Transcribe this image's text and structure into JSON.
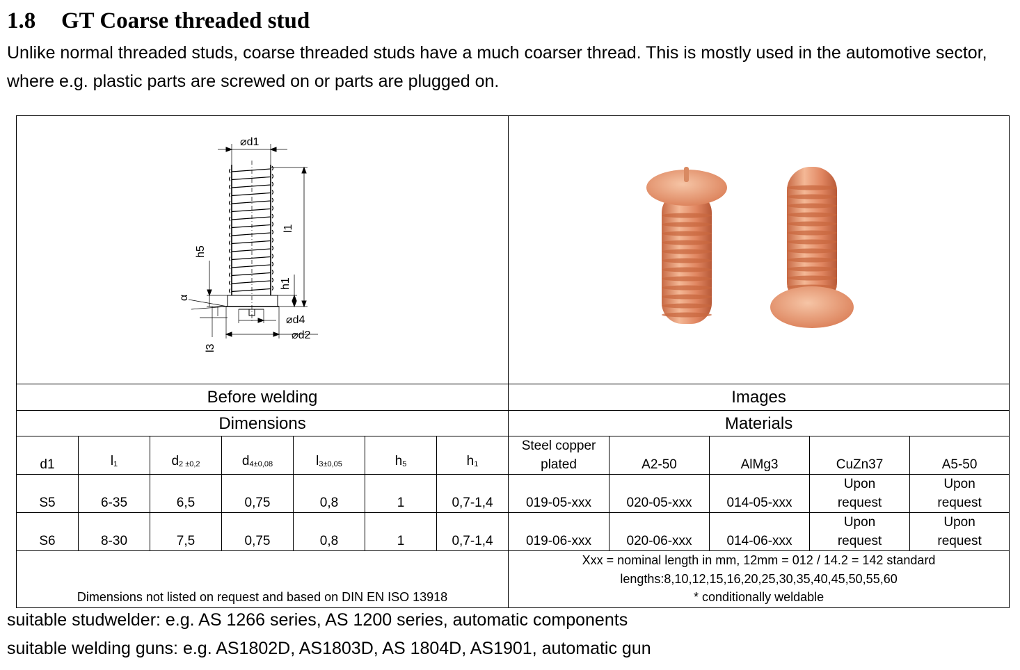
{
  "section": {
    "number": "1.8",
    "title": "GT Coarse threaded stud",
    "intro": "Unlike normal threaded studs, coarse threaded studs have a much coarser thread. This is mostly used in the automotive sector, where e.g. plastic parts are screwed on or parts are plugged on."
  },
  "drawing": {
    "labels": {
      "d1": "⌀d1",
      "l1": "l1",
      "h5": "h5",
      "h1": "h1",
      "a": "α",
      "d4": "⌀d4",
      "d2": "⌀d2",
      "l3": "l3"
    }
  },
  "photo": {
    "colors": {
      "copper_light": "#f4b896",
      "copper_mid": "#e08560",
      "copper_dark": "#b85a38"
    }
  },
  "table": {
    "headers": {
      "before_welding": "Before welding",
      "images": "Images",
      "dimensions": "Dimensions",
      "materials": "Materials"
    },
    "columns": {
      "d1": "d1",
      "l1": {
        "main": "l",
        "sub": "1"
      },
      "d2": {
        "main": "d",
        "sub": "2 ±0,2"
      },
      "d4": {
        "main": "d",
        "sub": "4±0,08"
      },
      "l3": {
        "main": "l",
        "sub": "3±0,05"
      },
      "h5": {
        "main": "h",
        "sub": "5"
      },
      "h1": {
        "main": "h",
        "sub": "1"
      },
      "steel": "Steel copper plated",
      "a2": "A2-50",
      "almg3": "AlMg3",
      "cuzn37": "CuZn37",
      "a5": "A5-50"
    },
    "rows": [
      {
        "d1": "S5",
        "l1": "6-35",
        "d2": "6,5",
        "d4": "0,75",
        "l3": "0,8",
        "h5": "1",
        "h1": "0,7-1,4",
        "steel": "019-05-xxx",
        "a2": "020-05-xxx",
        "almg3": "014-05-xxx",
        "cuzn37": "Upon request",
        "a5": "Upon request"
      },
      {
        "d1": "S6",
        "l1": "8-30",
        "d2": "7,5",
        "d4": "0,75",
        "l3": "0,8",
        "h5": "1",
        "h1": "0,7-1,4",
        "steel": "019-06-xxx",
        "a2": "020-06-xxx",
        "almg3": "014-06-xxx",
        "cuzn37": "Upon request",
        "a5": "Upon request"
      }
    ],
    "notes": {
      "dimensions": "Dimensions not listed on request and based on DIN EN ISO 13918",
      "materials_line1": "Xxx = nominal length in mm, 12mm = 012 / 14.2 = 142 standard",
      "materials_line2": "lengths:8,10,12,15,16,20,25,30,35,40,45,50,55,60",
      "materials_line3": "* conditionally weldable"
    }
  },
  "footer": {
    "studwelder": "suitable studwelder: e.g. AS 1266 series, AS 1200 series, automatic components",
    "guns": "suitable welding guns: e.g. AS1802D, AS1803D, AS 1804D, AS1901, automatic gun"
  }
}
